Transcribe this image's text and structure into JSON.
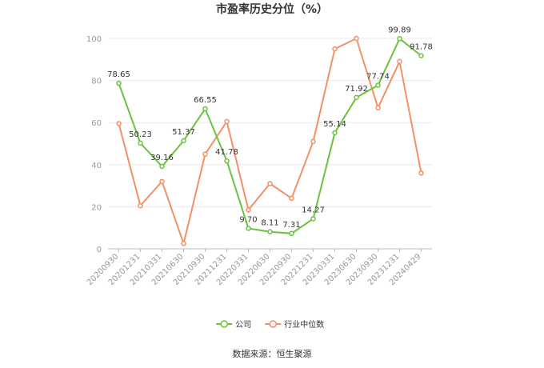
{
  "chart_data": {
    "type": "line",
    "title": "市盈率历史分位（%）",
    "categories": [
      "20200930",
      "20201231",
      "20210331",
      "20210630",
      "20210930",
      "20211231",
      "20220331",
      "20220630",
      "20220930",
      "20221231",
      "20230331",
      "20230630",
      "20230930",
      "20231231",
      "20240429"
    ],
    "ylim": [
      0,
      100
    ],
    "yticks": [
      0,
      20,
      40,
      60,
      80,
      100
    ],
    "grid": true,
    "legend_position": "bottom",
    "series": [
      {
        "name": "公司",
        "color": "#6ac33c",
        "values": [
          78.65,
          50.23,
          39.16,
          51.37,
          66.55,
          41.78,
          9.7,
          8.11,
          7.31,
          14.27,
          55.14,
          71.92,
          77.74,
          99.89,
          91.78
        ],
        "labels": [
          "78.65",
          "50.23",
          "39.16",
          "51.37",
          "66.55",
          "41.78",
          "9.70",
          "8.11",
          "7.31",
          "14.27",
          "55.14",
          "71.92",
          "77.74",
          "99.89",
          "91.78"
        ]
      },
      {
        "name": "行业中位数",
        "color": "#f39066",
        "values": [
          59.5,
          20.5,
          32,
          2.5,
          45,
          60.5,
          18.5,
          31,
          24,
          51,
          95,
          100,
          67,
          89,
          36
        ]
      }
    ]
  },
  "footer": {
    "source": "数据来源：恒生聚源"
  }
}
